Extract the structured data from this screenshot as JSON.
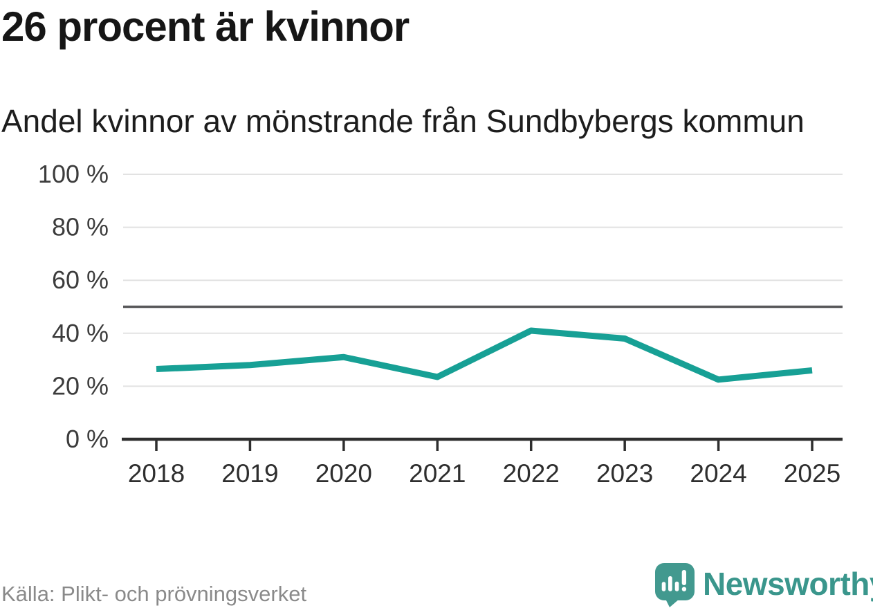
{
  "header": {
    "title": "26 procent är kvinnor",
    "subtitle": "Andel kvinnor av mönstrande från Sundbybergs kommun"
  },
  "chart_data": {
    "type": "line",
    "title": "26 procent är kvinnor",
    "subtitle": "Andel kvinnor av mönstrande från Sundbybergs kommun",
    "x": [
      "2018",
      "2019",
      "2020",
      "2021",
      "2022",
      "2023",
      "2024",
      "2025"
    ],
    "series": [
      {
        "name": "Andel kvinnor av mönstrande",
        "color": "#17a095",
        "values": [
          26.5,
          28,
          31,
          23.5,
          41,
          38,
          22.5,
          26
        ]
      }
    ],
    "ylim": [
      0,
      100
    ],
    "yticks": [
      0,
      20,
      40,
      60,
      80,
      100
    ],
    "ytick_suffix": " %",
    "reference_line": {
      "value": 50
    },
    "grid": true,
    "legend": "none"
  },
  "footer": {
    "source": "Källa: Plikt- och prövningsverket",
    "brand": "Newsworthy"
  },
  "colors": {
    "line": "#17a095",
    "grid": "#e2e2e2",
    "reference": "#58585a",
    "axis": "#2e2e2e",
    "tick_label": "#3c3c3c",
    "title_text": "#161616",
    "source_text": "#8a8a8a",
    "brand_text": "#3a968c",
    "logo_fill": "#42998f"
  }
}
